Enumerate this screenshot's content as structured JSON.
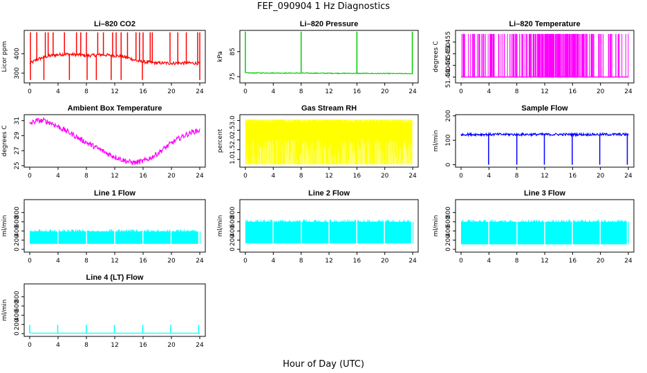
{
  "figure": {
    "title": "FEF_090904  1 Hz Diagnostics",
    "xlabel": "Hour of Day (UTC)"
  },
  "chart_data": [
    {
      "type": "line",
      "title": "Li–820 CO2",
      "ylabel": "Licor ppm",
      "color": "#ff0000",
      "xlim": [
        0,
        24
      ],
      "ylim": [
        250,
        520
      ],
      "xticks": [
        "0",
        "4",
        "8",
        "12",
        "16",
        "20",
        "24"
      ],
      "yticks": [
        "300",
        "400"
      ],
      "series": [
        {
          "x": [
            0,
            0.3,
            1,
            2,
            3,
            4,
            5,
            6,
            7,
            8,
            9,
            10,
            11,
            12,
            13,
            14,
            15,
            16,
            17,
            18,
            19,
            20,
            21,
            22,
            23,
            24
          ],
          "values": [
            350,
            355,
            370,
            382,
            390,
            395,
            398,
            396,
            394,
            390,
            392,
            395,
            393,
            390,
            386,
            378,
            365,
            358,
            355,
            352,
            352,
            351,
            352,
            352,
            352,
            350
          ]
        }
      ],
      "spikes": [
        0.1,
        1.0,
        2.2,
        2.6,
        3.3,
        4.9,
        6.6,
        7.2,
        8.0,
        9.6,
        10.4,
        11.7,
        12.2,
        12.9,
        13.8,
        15.0,
        15.5,
        16.0,
        17.0,
        17.3,
        19.8,
        20.9,
        22.1,
        23.7,
        24.0
      ],
      "spike_top": 510,
      "dips": [
        0.1,
        2.0,
        5.6,
        8.1,
        9.4,
        11.5,
        12.9,
        15.9,
        24.0
      ],
      "dip_bottom": 265,
      "noise": 8
    },
    {
      "type": "line",
      "title": "Li–820 Pressure",
      "ylabel": "kPa",
      "color": "#00cc00",
      "xlim": [
        0,
        24
      ],
      "ylim": [
        72.5,
        93.5
      ],
      "xticks": [
        "0",
        "4",
        "8",
        "12",
        "16",
        "20",
        "24"
      ],
      "yticks": [
        "75",
        "85"
      ],
      "series": [
        {
          "x": [
            0,
            24
          ],
          "values": [
            76.5,
            76.2
          ]
        }
      ],
      "spikes": [
        0.0,
        8.0,
        16.0,
        23.95
      ],
      "spike_top": 93.0,
      "dips": [],
      "dip_bottom": 75,
      "noise": 0.15
    },
    {
      "type": "line",
      "title": "Li–820 Temperature",
      "ylabel": "degrees C",
      "color": "#ff00ff",
      "xlim": [
        0,
        24
      ],
      "ylim": [
        51.4375,
        51.46
      ],
      "xticks": [
        "0",
        "4",
        "8",
        "12",
        "16",
        "20",
        "24"
      ],
      "yticks": [
        "51.440",
        "51.445",
        "51.450",
        "51.455"
      ],
      "series": [
        {
          "x": [
            0,
            24
          ],
          "values": [
            51.44,
            51.44
          ]
        }
      ],
      "flicker_high": 51.4585,
      "flicker_low": 51.44,
      "noise": 0
    },
    {
      "type": "line",
      "title": "Ambient Box Temperature",
      "ylabel": "degrees C",
      "color": "#ff00ff",
      "xlim": [
        0,
        24
      ],
      "ylim": [
        24.8,
        31.8
      ],
      "xticks": [
        "0",
        "4",
        "8",
        "12",
        "16",
        "20",
        "24"
      ],
      "yticks": [
        "25",
        "27",
        "29",
        "31"
      ],
      "series": [
        {
          "x": [
            0,
            1,
            2,
            3,
            4,
            5,
            6,
            7,
            8,
            9,
            10,
            11,
            12,
            13,
            14,
            15,
            16,
            17,
            18,
            19,
            20,
            21,
            22,
            23,
            24
          ],
          "values": [
            30.6,
            31.0,
            31.0,
            30.7,
            30.2,
            29.7,
            29.2,
            28.6,
            28.1,
            27.6,
            27.1,
            26.6,
            26.2,
            25.8,
            25.5,
            25.4,
            25.6,
            26.0,
            26.6,
            27.3,
            28.0,
            28.6,
            29.1,
            29.5,
            29.7
          ]
        }
      ],
      "noise": 0.35
    },
    {
      "type": "line",
      "title": "Gas Stream RH",
      "ylabel": "percent",
      "color": "#ffff00",
      "xlim": [
        0,
        24
      ],
      "ylim": [
        0.6,
        3.3
      ],
      "xticks": [
        "0",
        "4",
        "8",
        "12",
        "16",
        "20",
        "24"
      ],
      "yticks": [
        "1.0",
        "1.5",
        "2.0",
        "2.5",
        "3.0"
      ],
      "series": [
        {
          "x": [
            0,
            24
          ],
          "values": [
            2.9,
            2.9
          ]
        }
      ],
      "band_low": 0.75,
      "band_high": 3.05,
      "noise": 0
    },
    {
      "type": "line",
      "title": "Sample Flow",
      "ylabel": "ml/min",
      "color": "#0000ff",
      "xlim": [
        0,
        24
      ],
      "ylim": [
        -10,
        205
      ],
      "xticks": [
        "0",
        "4",
        "8",
        "12",
        "16",
        "20",
        "24"
      ],
      "yticks": [
        "0",
        "100",
        "200"
      ],
      "series": [
        {
          "x": [
            0,
            24
          ],
          "values": [
            124,
            124
          ]
        }
      ],
      "spikes": [],
      "dips": [
        3.95,
        8.0,
        11.95,
        15.95,
        19.9,
        23.85
      ],
      "dip_bottom": 0,
      "noise": 5
    },
    {
      "type": "line",
      "title": "Line 1 Flow",
      "ylabel": "ml/min",
      "color": "#00ffff",
      "xlim": [
        0,
        24
      ],
      "ylim": [
        -60,
        1080
      ],
      "xticks": [
        "0",
        "4",
        "8",
        "12",
        "16",
        "20",
        "24"
      ],
      "yticks": [
        "0",
        "200",
        "400",
        "600",
        "800"
      ],
      "series": [
        {
          "x": [
            0,
            24
          ],
          "values": [
            380,
            380
          ]
        }
      ],
      "band_low": 120,
      "band_high": 390,
      "gaps": [
        3.95,
        8.0,
        11.95,
        15.95,
        19.9,
        23.85
      ],
      "noise": 0
    },
    {
      "type": "line",
      "title": "Line 2 Flow",
      "ylabel": "ml/min",
      "color": "#00ffff",
      "xlim": [
        0,
        24
      ],
      "ylim": [
        -60,
        1080
      ],
      "xticks": [
        "0",
        "4",
        "8",
        "12",
        "16",
        "20",
        "24"
      ],
      "yticks": [
        "0",
        "200",
        "400",
        "600",
        "800"
      ],
      "series": [
        {
          "x": [
            0,
            24
          ],
          "values": [
            590,
            590
          ]
        }
      ],
      "band_low": 130,
      "band_high": 600,
      "gaps": [
        3.95,
        8.0,
        11.95,
        15.95,
        19.9,
        23.85
      ],
      "noise": 0
    },
    {
      "type": "line",
      "title": "Line 3 Flow",
      "ylabel": "ml/min",
      "color": "#00ffff",
      "xlim": [
        0,
        24
      ],
      "ylim": [
        -60,
        1080
      ],
      "xticks": [
        "0",
        "4",
        "8",
        "12",
        "16",
        "20",
        "24"
      ],
      "yticks": [
        "0",
        "200",
        "400",
        "600",
        "800"
      ],
      "series": [
        {
          "x": [
            0,
            24
          ],
          "values": [
            590,
            590
          ]
        }
      ],
      "band_low": 110,
      "band_high": 600,
      "gaps": [
        3.95,
        8.0,
        11.95,
        15.95,
        19.9,
        23.85
      ],
      "noise": 0
    },
    {
      "type": "line",
      "title": "Line 4 (LT) Flow",
      "ylabel": "ml/min",
      "color": "#00ffff",
      "xlim": [
        0,
        24
      ],
      "ylim": [
        -60,
        1080
      ],
      "xticks": [
        "0",
        "4",
        "8",
        "12",
        "16",
        "20",
        "24"
      ],
      "yticks": [
        "0",
        "200",
        "400",
        "600",
        "800"
      ],
      "series": [
        {
          "x": [
            0,
            24
          ],
          "values": [
            10,
            10
          ]
        }
      ],
      "spikes": [
        0.0,
        3.95,
        8.0,
        11.95,
        15.95,
        19.9,
        23.85
      ],
      "spike_top": 190,
      "dips": [],
      "dip_bottom": 0,
      "noise": 3
    }
  ]
}
